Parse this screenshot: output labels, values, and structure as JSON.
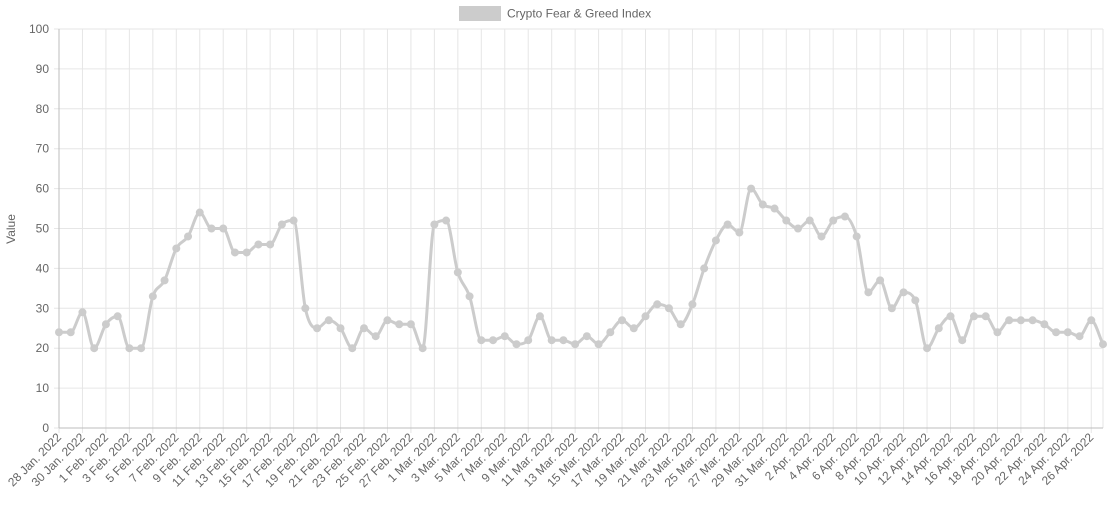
{
  "chart_data": {
    "type": "line",
    "ylabel": "Value",
    "ylim": [
      0,
      100
    ],
    "y_ticks": [
      "0",
      "10",
      "20",
      "30",
      "40",
      "50",
      "60",
      "70",
      "80",
      "90",
      "100"
    ],
    "grid": true,
    "legend_position": "top-center",
    "x": [
      "28 Jan. 2022",
      "29 Jan. 2022",
      "30 Jan. 2022",
      "31 Jan. 2022",
      "1 Feb. 2022",
      "2 Feb. 2022",
      "3 Feb. 2022",
      "4 Feb. 2022",
      "5 Feb. 2022",
      "6 Feb. 2022",
      "7 Feb. 2022",
      "8 Feb. 2022",
      "9 Feb. 2022",
      "10 Feb. 2022",
      "11 Feb. 2022",
      "12 Feb. 2022",
      "13 Feb. 2022",
      "14 Feb. 2022",
      "15 Feb. 2022",
      "16 Feb. 2022",
      "17 Feb. 2022",
      "18 Feb. 2022",
      "19 Feb. 2022",
      "20 Feb. 2022",
      "21 Feb. 2022",
      "22 Feb. 2022",
      "23 Feb. 2022",
      "24 Feb. 2022",
      "25 Feb. 2022",
      "26 Feb. 2022",
      "27 Feb. 2022",
      "28 Feb. 2022",
      "1 Mar. 2022",
      "2 Mar. 2022",
      "3 Mar. 2022",
      "4 Mar. 2022",
      "5 Mar. 2022",
      "6 Mar. 2022",
      "7 Mar. 2022",
      "8 Mar. 2022",
      "9 Mar. 2022",
      "10 Mar. 2022",
      "11 Mar. 2022",
      "12 Mar. 2022",
      "13 Mar. 2022",
      "14 Mar. 2022",
      "15 Mar. 2022",
      "16 Mar. 2022",
      "17 Mar. 2022",
      "18 Mar. 2022",
      "19 Mar. 2022",
      "20 Mar. 2022",
      "21 Mar. 2022",
      "22 Mar. 2022",
      "23 Mar. 2022",
      "24 Mar. 2022",
      "25 Mar. 2022",
      "26 Mar. 2022",
      "27 Mar. 2022",
      "28 Mar. 2022",
      "29 Mar. 2022",
      "30 Mar. 2022",
      "31 Mar. 2022",
      "1 Apr. 2022",
      "2 Apr. 2022",
      "3 Apr. 2022",
      "4 Apr. 2022",
      "5 Apr. 2022",
      "6 Apr. 2022",
      "7 Apr. 2022",
      "8 Apr. 2022",
      "9 Apr. 2022",
      "10 Apr. 2022",
      "11 Apr. 2022",
      "12 Apr. 2022",
      "13 Apr. 2022",
      "14 Apr. 2022",
      "15 Apr. 2022",
      "16 Apr. 2022",
      "17 Apr. 2022",
      "18 Apr. 2022",
      "19 Apr. 2022",
      "20 Apr. 2022",
      "21 Apr. 2022",
      "22 Apr. 2022",
      "23 Apr. 2022",
      "24 Apr. 2022",
      "25 Apr. 2022",
      "26 Apr. 2022",
      "27 Apr. 2022"
    ],
    "x_tick_labels": [
      "28 Jan. 2022",
      "30 Jan. 2022",
      "1 Feb. 2022",
      "3 Feb. 2022",
      "5 Feb. 2022",
      "7 Feb. 2022",
      "9 Feb. 2022",
      "11 Feb. 2022",
      "13 Feb. 2022",
      "15 Feb. 2022",
      "17 Feb. 2022",
      "19 Feb. 2022",
      "21 Feb. 2022",
      "23 Feb. 2022",
      "25 Feb. 2022",
      "27 Feb. 2022",
      "1 Mar. 2022",
      "3 Mar. 2022",
      "5 Mar. 2022",
      "7 Mar. 2022",
      "9 Mar. 2022",
      "11 Mar. 2022",
      "13 Mar. 2022",
      "15 Mar. 2022",
      "17 Mar. 2022",
      "19 Mar. 2022",
      "21 Mar. 2022",
      "23 Mar. 2022",
      "25 Mar. 2022",
      "27 Mar. 2022",
      "29 Mar. 2022",
      "31 Mar. 2022",
      "2 Apr. 2022",
      "4 Apr. 2022",
      "6 Apr. 2022",
      "8 Apr. 2022",
      "10 Apr. 2022",
      "12 Apr. 2022",
      "14 Apr. 2022",
      "16 Apr. 2022",
      "18 Apr. 2022",
      "20 Apr. 2022",
      "22 Apr. 2022",
      "24 Apr. 2022",
      "26 Apr. 2022"
    ],
    "series": [
      {
        "name": "Crypto Fear & Greed Index",
        "color": "#cccccc",
        "values": [
          24,
          24,
          29,
          20,
          26,
          28,
          20,
          20,
          33,
          37,
          45,
          48,
          54,
          50,
          50,
          44,
          44,
          46,
          46,
          51,
          52,
          30,
          25,
          27,
          25,
          20,
          25,
          23,
          27,
          26,
          26,
          20,
          51,
          52,
          39,
          33,
          22,
          22,
          23,
          21,
          22,
          28,
          22,
          22,
          21,
          23,
          21,
          24,
          27,
          25,
          28,
          31,
          30,
          26,
          31,
          40,
          47,
          51,
          49,
          60,
          56,
          55,
          52,
          50,
          52,
          48,
          52,
          53,
          48,
          34,
          37,
          30,
          34,
          32,
          20,
          25,
          28,
          22,
          28,
          28,
          24,
          27,
          27,
          27,
          26,
          24,
          24,
          23,
          27,
          21
        ]
      }
    ]
  }
}
